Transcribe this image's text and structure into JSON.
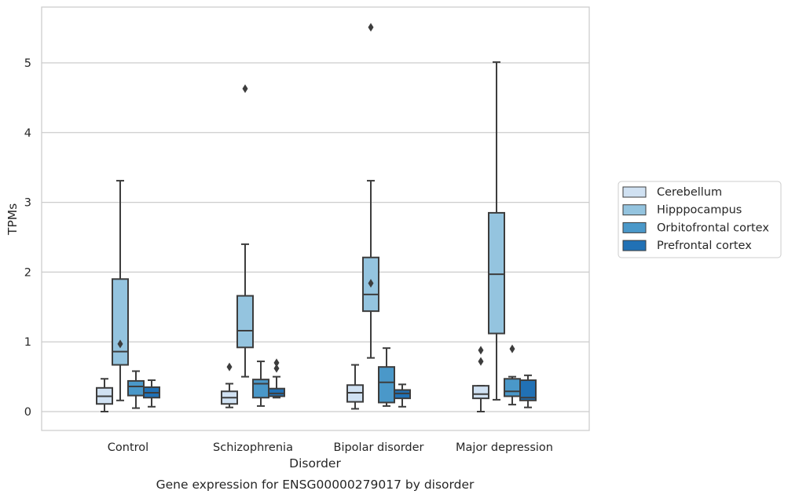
{
  "caption": "Gene expression for ENSG00000279017 by disorder",
  "chart_data": {
    "type": "boxplot",
    "title": "",
    "xlabel": "Disorder",
    "ylabel": "TPMs",
    "ylim": [
      -0.27,
      5.78
    ],
    "yticks": [
      0,
      1,
      2,
      3,
      4,
      5
    ],
    "grid": "horizontal",
    "legend_placement": "right",
    "categories": [
      "Control",
      "Schizophrenia",
      "Bipolar disorder",
      "Major depression"
    ],
    "series": [
      {
        "name": "Cerebellum",
        "color": "#d0e1f2",
        "boxes": [
          {
            "whisker_low": 0.0,
            "q1": 0.11,
            "median": 0.22,
            "q3": 0.34,
            "whisker_high": 0.47,
            "outliers": []
          },
          {
            "whisker_low": 0.06,
            "q1": 0.11,
            "median": 0.2,
            "q3": 0.29,
            "whisker_high": 0.4,
            "outliers": [
              0.64
            ]
          },
          {
            "whisker_low": 0.04,
            "q1": 0.14,
            "median": 0.27,
            "q3": 0.38,
            "whisker_high": 0.67,
            "outliers": []
          },
          {
            "whisker_low": 0.0,
            "q1": 0.19,
            "median": 0.25,
            "q3": 0.37,
            "whisker_high": 0.37,
            "outliers": [
              0.72,
              0.88
            ]
          }
        ]
      },
      {
        "name": "Hipppocampus",
        "color": "#94c4df",
        "boxes": [
          {
            "whisker_low": 0.16,
            "q1": 0.67,
            "median": 0.86,
            "q3": 1.9,
            "whisker_high": 3.31,
            "outliers": [
              0.97
            ]
          },
          {
            "whisker_low": 0.5,
            "q1": 0.92,
            "median": 1.16,
            "q3": 1.66,
            "whisker_high": 2.4,
            "outliers": [
              4.63
            ]
          },
          {
            "whisker_low": 0.77,
            "q1": 1.44,
            "median": 1.68,
            "q3": 2.21,
            "whisker_high": 3.31,
            "outliers": [
              1.84,
              5.51
            ]
          },
          {
            "whisker_low": 0.17,
            "q1": 1.12,
            "median": 1.97,
            "q3": 2.85,
            "whisker_high": 5.01,
            "outliers": []
          }
        ]
      },
      {
        "name": "Orbitofrontal cortex",
        "color": "#4a98c9",
        "boxes": [
          {
            "whisker_low": 0.05,
            "q1": 0.23,
            "median": 0.36,
            "q3": 0.44,
            "whisker_high": 0.58,
            "outliers": []
          },
          {
            "whisker_low": 0.08,
            "q1": 0.2,
            "median": 0.4,
            "q3": 0.46,
            "whisker_high": 0.72,
            "outliers": []
          },
          {
            "whisker_low": 0.08,
            "q1": 0.13,
            "median": 0.42,
            "q3": 0.64,
            "whisker_high": 0.91,
            "outliers": []
          },
          {
            "whisker_low": 0.1,
            "q1": 0.22,
            "median": 0.29,
            "q3": 0.47,
            "whisker_high": 0.5,
            "outliers": [
              0.9
            ]
          }
        ]
      },
      {
        "name": "Prefrontal cortex",
        "color": "#2171b5",
        "boxes": [
          {
            "whisker_low": 0.07,
            "q1": 0.2,
            "median": 0.27,
            "q3": 0.35,
            "whisker_high": 0.45,
            "outliers": []
          },
          {
            "whisker_low": 0.2,
            "q1": 0.22,
            "median": 0.26,
            "q3": 0.33,
            "whisker_high": 0.5,
            "outliers": [
              0.62,
              0.7
            ]
          },
          {
            "whisker_low": 0.07,
            "q1": 0.19,
            "median": 0.26,
            "q3": 0.31,
            "whisker_high": 0.39,
            "outliers": []
          },
          {
            "whisker_low": 0.06,
            "q1": 0.16,
            "median": 0.2,
            "q3": 0.45,
            "whisker_high": 0.52,
            "outliers": []
          }
        ]
      }
    ]
  }
}
